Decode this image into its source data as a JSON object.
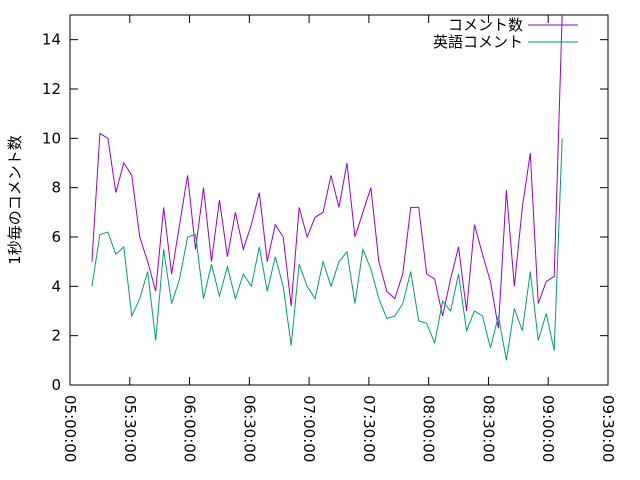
{
  "chart_data": {
    "type": "line",
    "ylabel": "1秒毎のコメント数",
    "x": [
      "05:11:00",
      "05:15:00",
      "05:19:00",
      "05:23:00",
      "05:27:00",
      "05:31:00",
      "05:35:00",
      "05:39:00",
      "05:43:00",
      "05:47:00",
      "05:51:00",
      "05:55:00",
      "05:59:00",
      "06:03:00",
      "06:07:00",
      "06:11:00",
      "06:15:00",
      "06:19:00",
      "06:23:00",
      "06:27:00",
      "06:31:00",
      "06:35:00",
      "06:39:00",
      "06:43:00",
      "06:47:00",
      "06:51:00",
      "06:55:00",
      "06:59:00",
      "07:03:00",
      "07:07:00",
      "07:11:00",
      "07:15:00",
      "07:19:00",
      "07:23:00",
      "07:27:00",
      "07:31:00",
      "07:35:00",
      "07:39:00",
      "07:43:00",
      "07:47:00",
      "07:51:00",
      "07:55:00",
      "07:59:00",
      "08:03:00",
      "08:07:00",
      "08:11:00",
      "08:15:00",
      "08:19:00",
      "08:23:00",
      "08:27:00",
      "08:31:00",
      "08:35:00",
      "08:39:00",
      "08:43:00",
      "08:47:00",
      "08:51:00",
      "08:55:00",
      "08:59:00",
      "09:03:00",
      "09:07:00"
    ],
    "series": [
      {
        "name": "コメント数",
        "color": "#9400d3",
        "values": [
          5.0,
          10.2,
          10.0,
          7.8,
          9.0,
          8.5,
          6.0,
          5.0,
          3.8,
          7.2,
          4.5,
          6.5,
          8.5,
          5.5,
          8.0,
          5.0,
          7.5,
          5.2,
          7.0,
          5.5,
          6.5,
          7.8,
          5.0,
          6.5,
          6.0,
          3.2,
          7.2,
          6.0,
          6.8,
          7.0,
          8.5,
          7.2,
          9.0,
          6.0,
          7.0,
          8.0,
          5.0,
          3.8,
          3.5,
          4.5,
          7.2,
          7.2,
          4.5,
          4.3,
          2.8,
          4.3,
          5.6,
          3.0,
          6.5,
          5.3,
          4.2,
          2.3,
          7.9,
          4.0,
          7.2,
          9.4,
          3.3,
          4.2,
          4.4,
          15
        ]
      },
      {
        "name": "英語コメント",
        "color": "#009e73",
        "values": [
          4.0,
          6.1,
          6.2,
          5.3,
          5.6,
          2.8,
          3.5,
          4.6,
          1.8,
          5.5,
          3.3,
          4.3,
          6.0,
          6.1,
          3.5,
          4.9,
          3.6,
          4.8,
          3.5,
          4.5,
          4.0,
          5.6,
          3.8,
          5.2,
          4.0,
          1.6,
          4.9,
          4.0,
          3.5,
          5.0,
          4.0,
          5.0,
          5.4,
          3.3,
          5.5,
          4.7,
          3.5,
          2.7,
          2.8,
          3.3,
          4.6,
          2.6,
          2.5,
          1.7,
          3.4,
          3.0,
          4.5,
          2.2,
          3.0,
          2.8,
          1.5,
          2.8,
          1.0,
          3.1,
          2.2,
          4.6,
          1.8,
          2.9,
          1.4,
          10.0
        ]
      }
    ],
    "xlim": [
      "05:00:00",
      "09:30:00"
    ],
    "xticks": [
      "05:00:00",
      "05:30:00",
      "06:00:00",
      "06:30:00",
      "07:00:00",
      "07:30:00",
      "08:00:00",
      "08:30:00",
      "09:00:00",
      "09:30:00"
    ],
    "ylim": [
      0,
      15
    ],
    "yticks": [
      0,
      2,
      4,
      6,
      8,
      10,
      12,
      14
    ],
    "legend": "top-right"
  }
}
